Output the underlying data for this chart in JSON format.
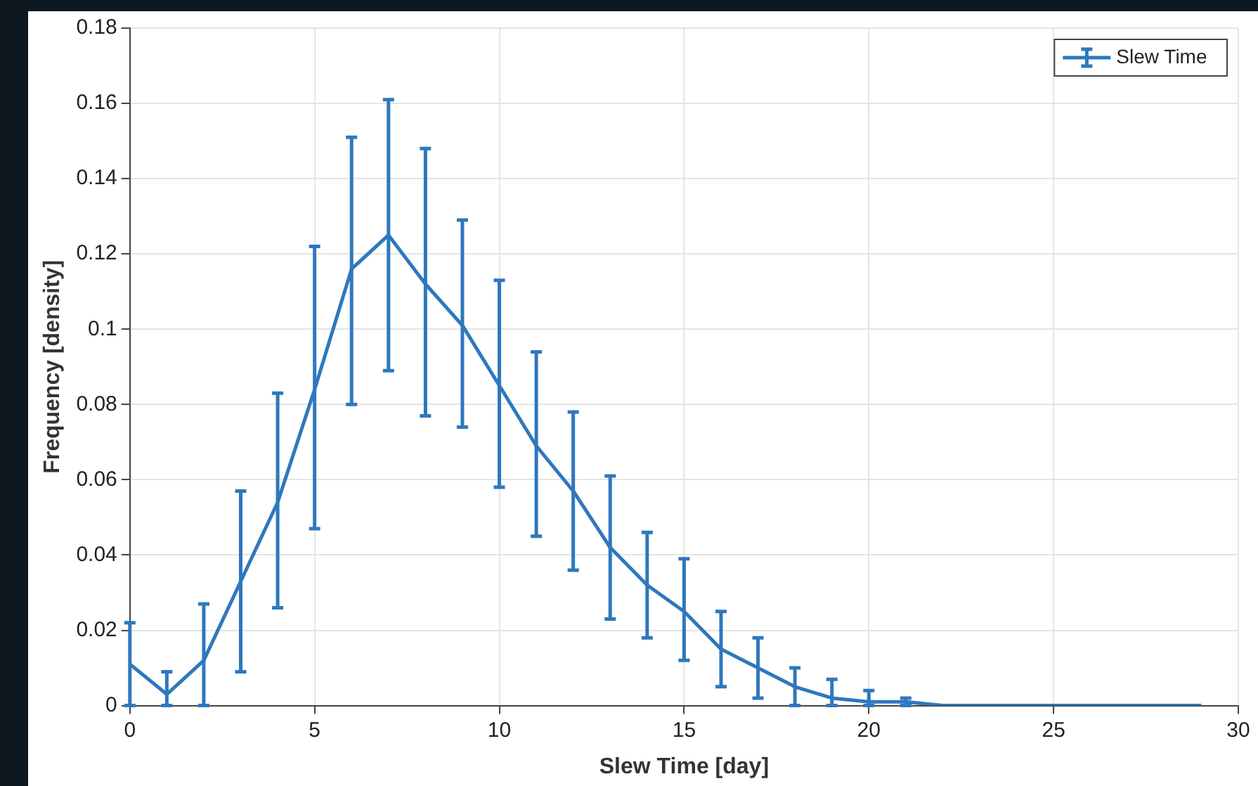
{
  "chart_data": {
    "type": "line",
    "xlabel": "Slew Time [day]",
    "ylabel": "Frequency [density]",
    "x": [
      0,
      1,
      2,
      3,
      4,
      5,
      6,
      7,
      8,
      9,
      10,
      11,
      12,
      13,
      14,
      15,
      16,
      17,
      18,
      19,
      20,
      21,
      22,
      23,
      24,
      25,
      26,
      27,
      28,
      29
    ],
    "series": [
      {
        "name": "Slew Time",
        "color": "#2e78bd",
        "values": [
          0.011,
          0.003,
          0.012,
          0.033,
          0.054,
          0.084,
          0.116,
          0.125,
          0.112,
          0.101,
          0.085,
          0.069,
          0.057,
          0.042,
          0.032,
          0.025,
          0.015,
          0.01,
          0.005,
          0.002,
          0.001,
          0.001,
          0,
          0,
          0,
          0,
          0,
          0,
          0,
          0
        ],
        "errors": [
          [
            0,
            0.022
          ],
          [
            0,
            0.009
          ],
          [
            0,
            0.027
          ],
          [
            0.009,
            0.057
          ],
          [
            0.026,
            0.083
          ],
          [
            0.047,
            0.122
          ],
          [
            0.08,
            0.151
          ],
          [
            0.089,
            0.161
          ],
          [
            0.077,
            0.148
          ],
          [
            0.074,
            0.129
          ],
          [
            0.058,
            0.113
          ],
          [
            0.045,
            0.094
          ],
          [
            0.036,
            0.078
          ],
          [
            0.023,
            0.061
          ],
          [
            0.018,
            0.046
          ],
          [
            0.012,
            0.039
          ],
          [
            0.005,
            0.025
          ],
          [
            0.002,
            0.018
          ],
          [
            0,
            0.01
          ],
          [
            0,
            0.007
          ],
          [
            0,
            0.004
          ],
          [
            0,
            0.002
          ],
          null,
          null,
          null,
          null,
          null,
          null,
          null,
          null
        ]
      }
    ],
    "xlim": [
      0,
      30
    ],
    "xticks": [
      0,
      5,
      10,
      15,
      20,
      25,
      30
    ],
    "ylim": [
      0,
      0.18
    ],
    "yticks": [
      0,
      0.02,
      0.04,
      0.06,
      0.08,
      0.1,
      0.12,
      0.14,
      0.16,
      0.18
    ],
    "grid": true,
    "legend": "top right",
    "marker": "none",
    "line_style": "solid"
  }
}
